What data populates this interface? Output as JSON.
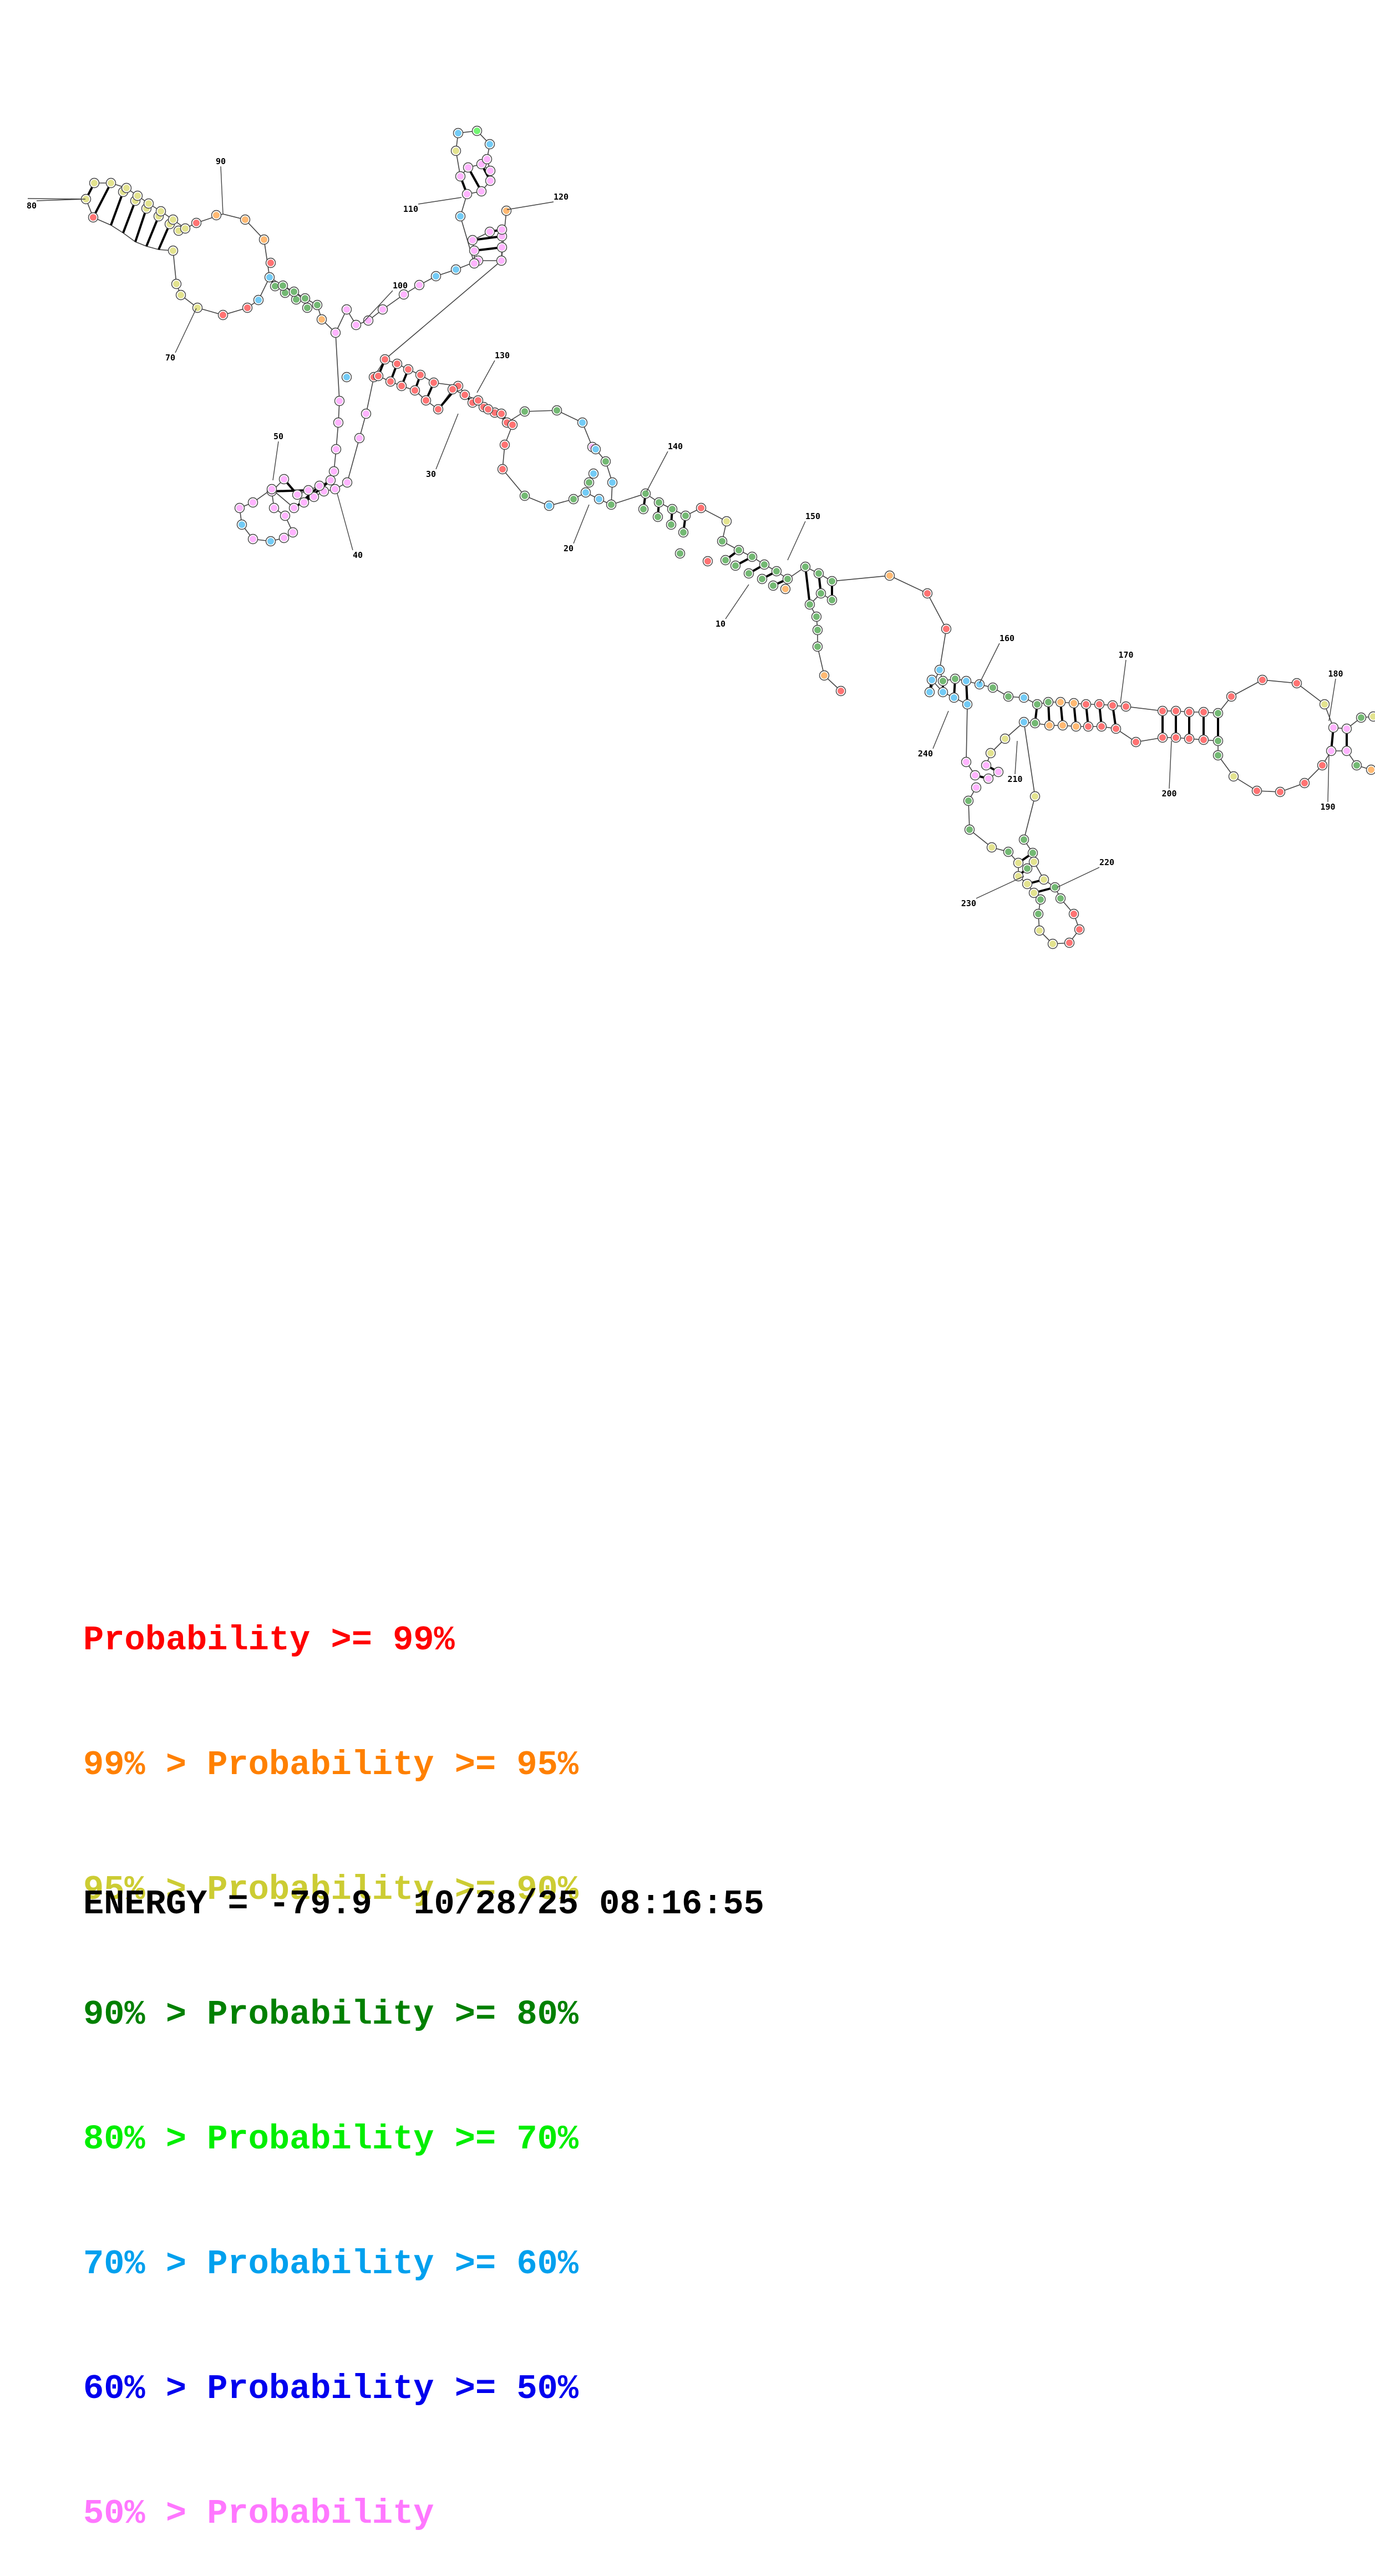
{
  "colors": {
    "p99": "#ff0000",
    "p95": "#ff8000",
    "p90": "#cccc33",
    "p80": "#008000",
    "p70": "#00ee00",
    "p60": "#00a0ee",
    "p50": "#0000ee",
    "plow": "#ff77ff"
  },
  "position_labels": [
    "10",
    "20",
    "30",
    "40",
    "50",
    "70",
    "80",
    "90",
    "100",
    "110",
    "120",
    "130",
    "140",
    "150",
    "160",
    "170",
    "180",
    "190",
    "200",
    "210",
    "220",
    "230",
    "240"
  ],
  "legend": [
    {
      "prefix": "",
      "label": "Probability",
      "suffix": " >= 99%",
      "color": "#ff0000"
    },
    {
      "prefix": "99% > ",
      "label": "Probability",
      "suffix": " >= 95%",
      "color": "#ff8000"
    },
    {
      "prefix": "95% > ",
      "label": "Probability",
      "suffix": " >= 90%",
      "color": "#cccc33"
    },
    {
      "prefix": "90% > ",
      "label": "Probability",
      "suffix": " >= 80%",
      "color": "#008000"
    },
    {
      "prefix": "80% > ",
      "label": "Probability",
      "suffix": " >= 70%",
      "color": "#00ee00"
    },
    {
      "prefix": "70% > ",
      "label": "Probability",
      "suffix": " >= 60%",
      "color": "#00a0ee"
    },
    {
      "prefix": "60% > ",
      "label": "Probability",
      "suffix": " >= 50%",
      "color": "#0000ee"
    },
    {
      "prefix": "50% > ",
      "label": "Probability",
      "suffix": "",
      "color": "#ff77ff"
    }
  ],
  "energy": {
    "label": "ENERGY = ",
    "value": "-79.9",
    "timestamp": "10/28/25 08:16:55"
  }
}
